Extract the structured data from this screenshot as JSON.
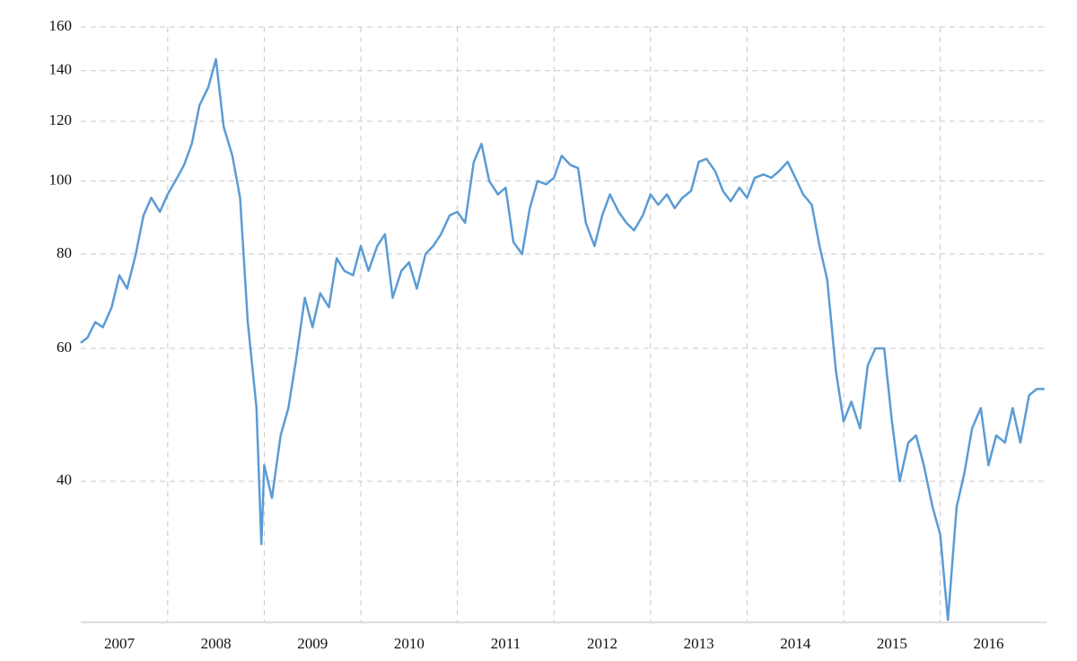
{
  "chart_data": {
    "type": "line",
    "log_y": true,
    "grid": true,
    "xlim": [
      2007.1,
      2017.1
    ],
    "xticks": [
      2007,
      2008,
      2009,
      2010,
      2011,
      2012,
      2013,
      2014,
      2015,
      2016
    ],
    "ylim": [
      26,
      160
    ],
    "yticks": [
      40,
      60,
      80,
      100,
      120,
      140,
      160
    ],
    "series": [
      {
        "color": "#5b9bd5",
        "x": [
          2007.1,
          2007.17,
          2007.25,
          2007.33,
          2007.42,
          2007.5,
          2007.58,
          2007.67,
          2007.75,
          2007.83,
          2007.92,
          2008.0,
          2008.08,
          2008.17,
          2008.25,
          2008.33,
          2008.42,
          2008.5,
          2008.58,
          2008.67,
          2008.75,
          2008.83,
          2008.92,
          2008.97,
          2009.0,
          2009.08,
          2009.17,
          2009.25,
          2009.33,
          2009.42,
          2009.5,
          2009.58,
          2009.67,
          2009.75,
          2009.83,
          2009.92,
          2010.0,
          2010.08,
          2010.17,
          2010.25,
          2010.33,
          2010.42,
          2010.5,
          2010.58,
          2010.67,
          2010.75,
          2010.83,
          2010.92,
          2011.0,
          2011.08,
          2011.17,
          2011.25,
          2011.33,
          2011.42,
          2011.5,
          2011.58,
          2011.67,
          2011.75,
          2011.83,
          2011.92,
          2012.0,
          2012.08,
          2012.17,
          2012.25,
          2012.33,
          2012.42,
          2012.5,
          2012.58,
          2012.67,
          2012.75,
          2012.83,
          2012.92,
          2013.0,
          2013.08,
          2013.17,
          2013.25,
          2013.33,
          2013.42,
          2013.5,
          2013.58,
          2013.67,
          2013.75,
          2013.83,
          2013.92,
          2014.0,
          2014.08,
          2014.17,
          2014.25,
          2014.33,
          2014.42,
          2014.5,
          2014.58,
          2014.67,
          2014.75,
          2014.83,
          2014.92,
          2015.0,
          2015.08,
          2015.17,
          2015.25,
          2015.33,
          2015.42,
          2015.5,
          2015.58,
          2015.67,
          2015.75,
          2015.83,
          2015.92,
          2016.0,
          2016.08,
          2016.17,
          2016.25,
          2016.33,
          2016.42,
          2016.5,
          2016.58,
          2016.67,
          2016.75,
          2016.83,
          2016.92,
          2017.0,
          2017.08
        ],
        "values": [
          61,
          62,
          65,
          64,
          68,
          75,
          72,
          80,
          90,
          95,
          91,
          96,
          100,
          105,
          112,
          126,
          133,
          145,
          118,
          108,
          95,
          65,
          50,
          33,
          42,
          38,
          46,
          50,
          58,
          70,
          64,
          71,
          68,
          79,
          76,
          75,
          82,
          76,
          82,
          85,
          70,
          76,
          78,
          72,
          80,
          82,
          85,
          90,
          91,
          88,
          106,
          112,
          100,
          96,
          98,
          83,
          80,
          92,
          100,
          99,
          101,
          108,
          105,
          104,
          88,
          82,
          90,
          96,
          91,
          88,
          86,
          90,
          96,
          93,
          96,
          92,
          95,
          97,
          106,
          107,
          103,
          97,
          94,
          98,
          95,
          101,
          102,
          101,
          103,
          106,
          101,
          96,
          93,
          82,
          74,
          56,
          48,
          51,
          47,
          57,
          60,
          60,
          48,
          40,
          45,
          46,
          42,
          37,
          34,
          26.2,
          37,
          41,
          47,
          50,
          42,
          46,
          45,
          50,
          45,
          52,
          53,
          53
        ]
      }
    ]
  }
}
